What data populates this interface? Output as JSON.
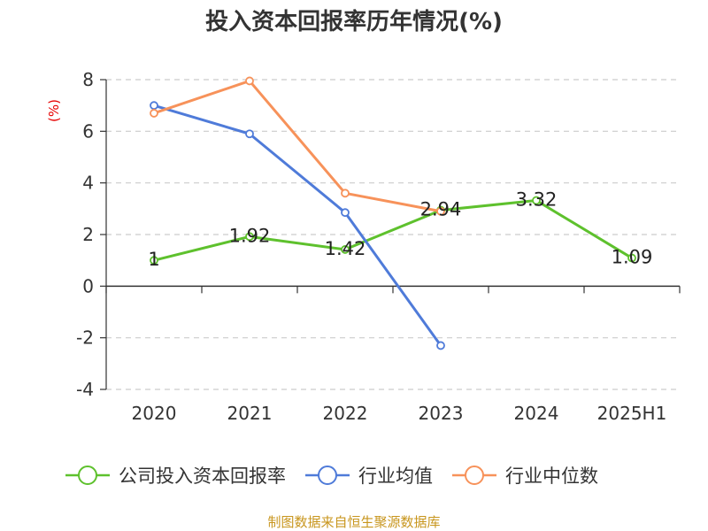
{
  "chart_data": {
    "type": "line",
    "title": "投入资本回报率历年情况(%)",
    "ylabel": "(%)",
    "categories": [
      "2020",
      "2021",
      "2022",
      "2023",
      "2024",
      "2025H1"
    ],
    "ylim": [
      -4,
      8
    ],
    "yticks": [
      8,
      6,
      4,
      2,
      0,
      -2,
      -4
    ],
    "grid": true,
    "legend_position": "bottom",
    "series": [
      {
        "name": "公司投入资本回报率",
        "color": "#5ec12d",
        "values": [
          1,
          1.92,
          1.42,
          2.94,
          3.32,
          1.09
        ],
        "labels": [
          "1",
          "1.92",
          "1.42",
          "2.94",
          "3.32",
          "1.09"
        ]
      },
      {
        "name": "行业均值",
        "color": "#4f7bd9",
        "values": [
          7.0,
          5.9,
          2.85,
          -2.3,
          null,
          null
        ]
      },
      {
        "name": "行业中位数",
        "color": "#f7925a",
        "values": [
          6.7,
          7.95,
          3.6,
          2.9,
          null,
          null
        ]
      }
    ],
    "source": "制图数据来自恒生聚源数据库"
  }
}
